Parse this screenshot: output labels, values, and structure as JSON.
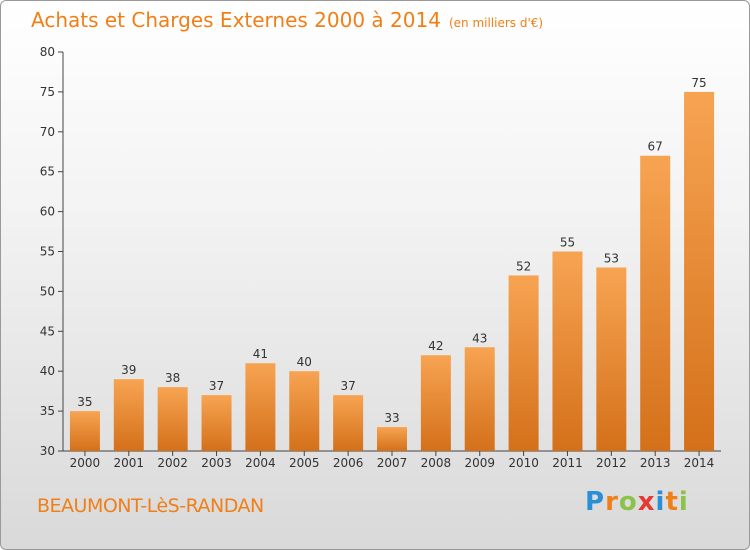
{
  "header": {
    "title": "Achats et Charges Externes 2000 à 2014",
    "unit": "(en milliers d'€)"
  },
  "footer": {
    "commune": "BEAUMONT-LèS-RANDAN",
    "logo": "Proxiti"
  },
  "colors": {
    "bar_top": "#f7a452",
    "bar_bottom": "#d4701a",
    "accent": "#f07f18"
  },
  "chart_data": {
    "type": "bar",
    "title": "Achats et Charges Externes 2000 à 2014",
    "subtitle": "(en milliers d'€)",
    "categories": [
      "2000",
      "2001",
      "2002",
      "2003",
      "2004",
      "2005",
      "2006",
      "2007",
      "2008",
      "2009",
      "2010",
      "2011",
      "2012",
      "2013",
      "2014"
    ],
    "values": [
      35,
      39,
      38,
      37,
      41,
      40,
      37,
      33,
      42,
      43,
      52,
      55,
      53,
      67,
      75
    ],
    "ylim": [
      30,
      80
    ],
    "yticks": [
      30,
      35,
      40,
      45,
      50,
      55,
      60,
      65,
      70,
      75,
      80
    ],
    "grid": false,
    "data_labels": true
  }
}
